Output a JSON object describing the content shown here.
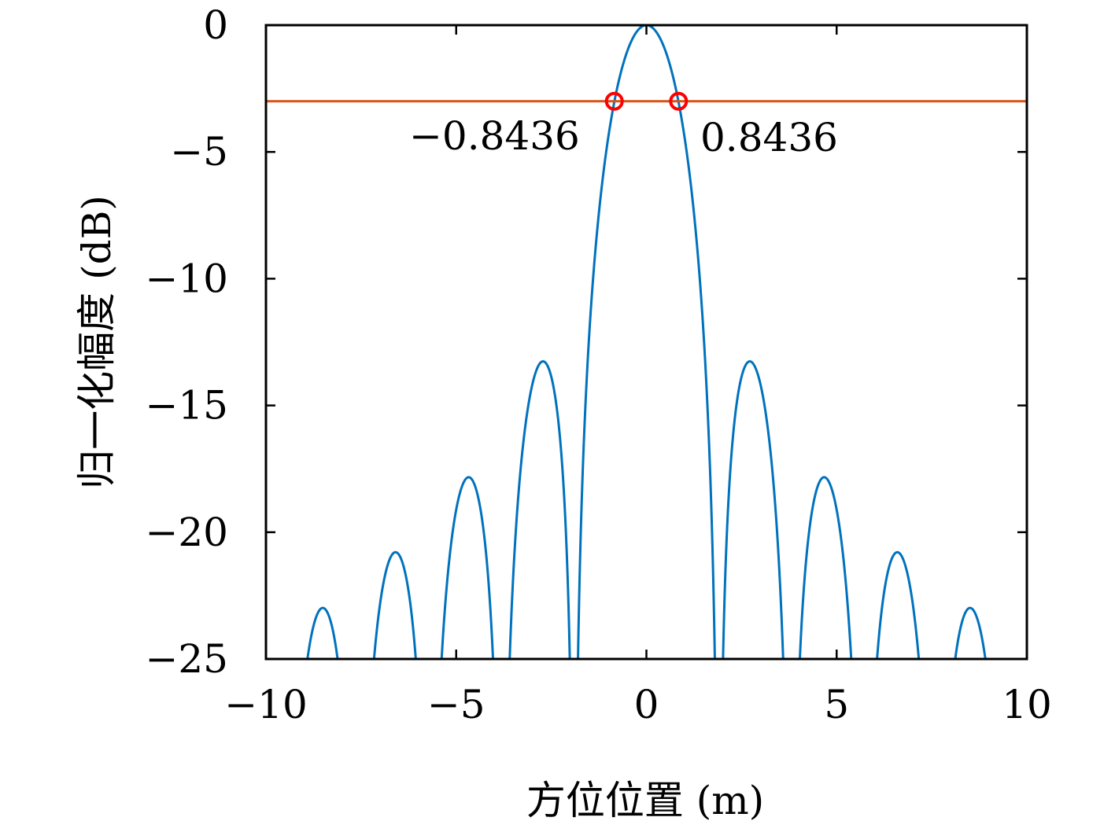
{
  "chart_data": {
    "type": "line",
    "title": "",
    "xlabel": "方位位置 (m)",
    "ylabel": "归一化幅度 (dB)",
    "xlim": [
      -10,
      10
    ],
    "ylim": [
      -25,
      0
    ],
    "xticks": [
      -10,
      -5,
      0,
      5,
      10
    ],
    "xtick_labels": [
      "−10",
      "−5",
      "0",
      "5",
      "10"
    ],
    "yticks": [
      0,
      -5,
      -10,
      -15,
      -20,
      -25
    ],
    "ytick_labels": [
      "0",
      "−5",
      "−10",
      "−15",
      "−20",
      "−25"
    ],
    "grid": false,
    "series": [
      {
        "kind": "sinc-pattern",
        "color": "#0072BD",
        "main_lobe_peak": {
          "x": 0,
          "y": 0
        },
        "first_null": 1.9,
        "x_range": [
          -9.5,
          9.5
        ]
      },
      {
        "kind": "horizontal-line",
        "color": "#D95319",
        "y": -3
      }
    ],
    "markers": [
      {
        "x": -0.8436,
        "y": -3,
        "color": "#FF0000"
      },
      {
        "x": 0.8436,
        "y": -3,
        "color": "#FF0000"
      }
    ],
    "annotations": [
      {
        "text": "−0.8436"
      },
      {
        "text": "0.8436"
      }
    ]
  }
}
